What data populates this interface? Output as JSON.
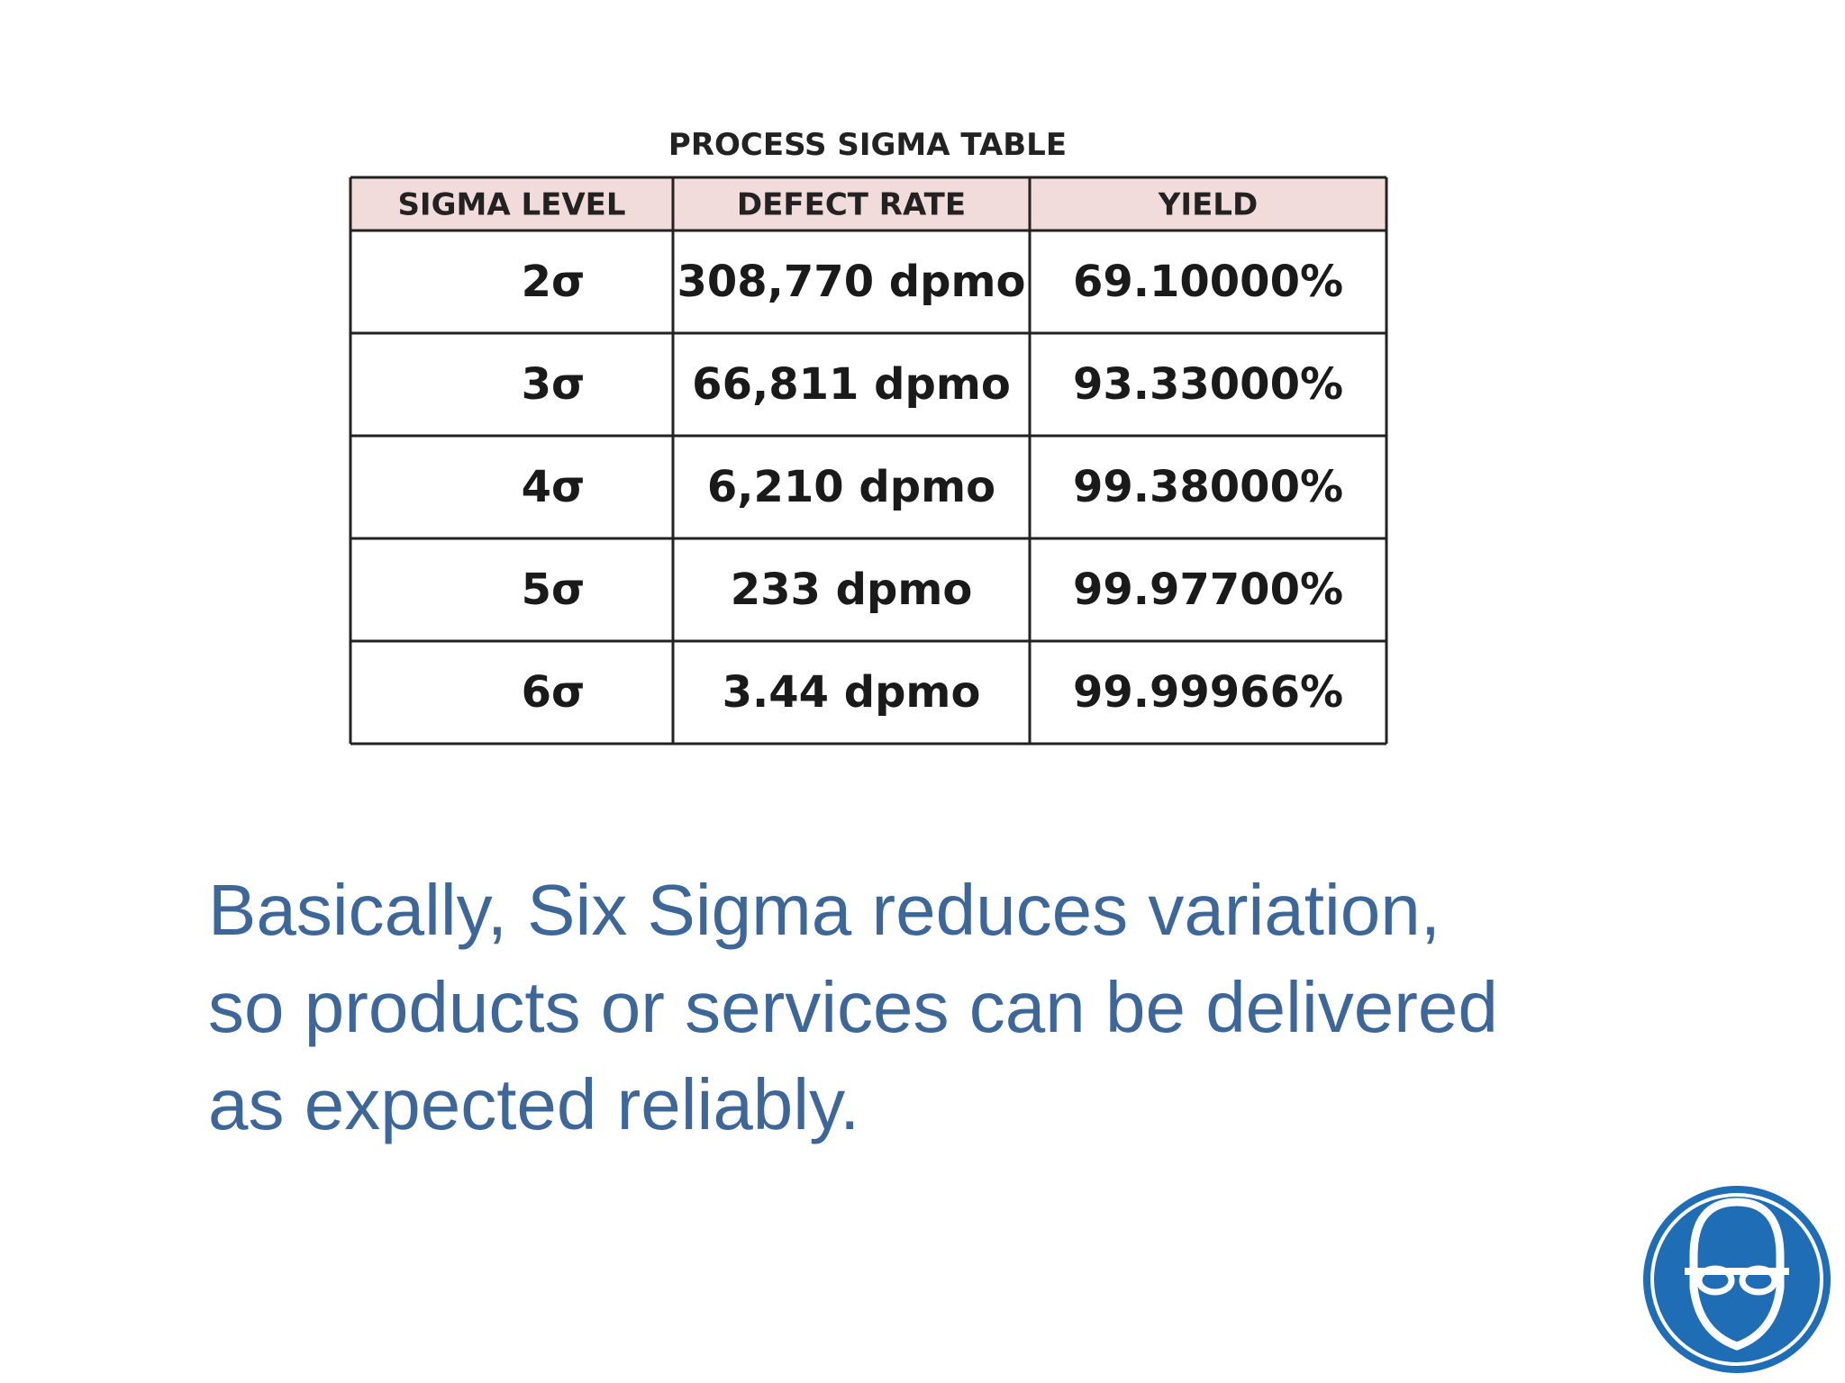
{
  "table": {
    "title": "PROCESS SIGMA TABLE",
    "header": [
      "SIGMA LEVEL",
      "DEFECT RATE",
      "YIELD"
    ],
    "rows": [
      [
        "2σ",
        "308,770 dpmo",
        "69.10000%"
      ],
      [
        "3σ",
        "66,811 dpmo",
        "93.33000%"
      ],
      [
        "4σ",
        "6,210 dpmo",
        "99.38000%"
      ],
      [
        "5σ",
        "233 dpmo",
        "99.97700%"
      ],
      [
        "6σ",
        "3.44 dpmo",
        "99.99966%"
      ]
    ]
  },
  "body": {
    "lines": [
      "Basically, Six Sigma reduces variation,",
      "so products or services can be delivered",
      "as expected reliably."
    ]
  }
}
